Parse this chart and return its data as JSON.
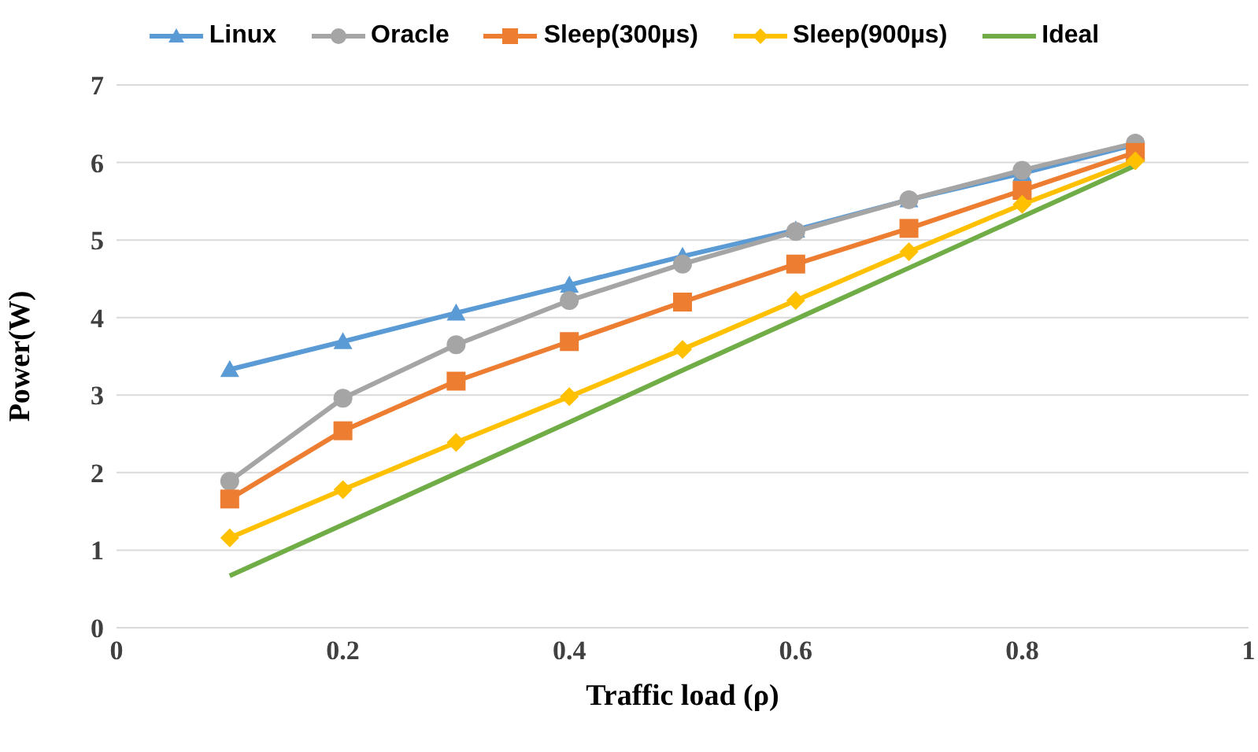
{
  "chart_data": {
    "type": "line",
    "xlabel": "Traffic load (ρ)",
    "ylabel": "Power(W)",
    "x": [
      0.1,
      0.2,
      0.3,
      0.4,
      0.5,
      0.6,
      0.7,
      0.8,
      0.9
    ],
    "xlim": [
      0,
      1
    ],
    "xticks": [
      0,
      0.2,
      0.4,
      0.6,
      0.8,
      1
    ],
    "ylim": [
      0,
      7
    ],
    "yticks": [
      0,
      1,
      2,
      3,
      4,
      5,
      6,
      7
    ],
    "grid": "y",
    "legend": "top",
    "series": [
      {
        "name": "Linux",
        "color": "#5b9bd5",
        "marker": "triangle",
        "values": [
          3.33,
          3.69,
          4.06,
          4.42,
          4.79,
          5.13,
          5.52,
          5.86,
          6.23
        ]
      },
      {
        "name": "Oracle",
        "color": "#a5a5a5",
        "marker": "circle",
        "values": [
          1.89,
          2.96,
          3.65,
          4.22,
          4.69,
          5.11,
          5.52,
          5.9,
          6.25
        ]
      },
      {
        "name": "Sleep(300µs)",
        "color": "#ed7d31",
        "marker": "square",
        "values": [
          1.66,
          2.54,
          3.18,
          3.69,
          4.2,
          4.69,
          5.15,
          5.64,
          6.13
        ]
      },
      {
        "name": "Sleep(900µs)",
        "color": "#ffc000",
        "marker": "diamond",
        "values": [
          1.16,
          1.78,
          2.39,
          2.98,
          3.59,
          4.22,
          4.85,
          5.46,
          6.02
        ]
      },
      {
        "name": "Ideal",
        "color": "#70ad47",
        "marker": "none",
        "values": [
          0.67,
          1.33,
          1.99,
          2.65,
          3.32,
          3.98,
          4.64,
          5.3,
          5.96
        ]
      }
    ]
  }
}
